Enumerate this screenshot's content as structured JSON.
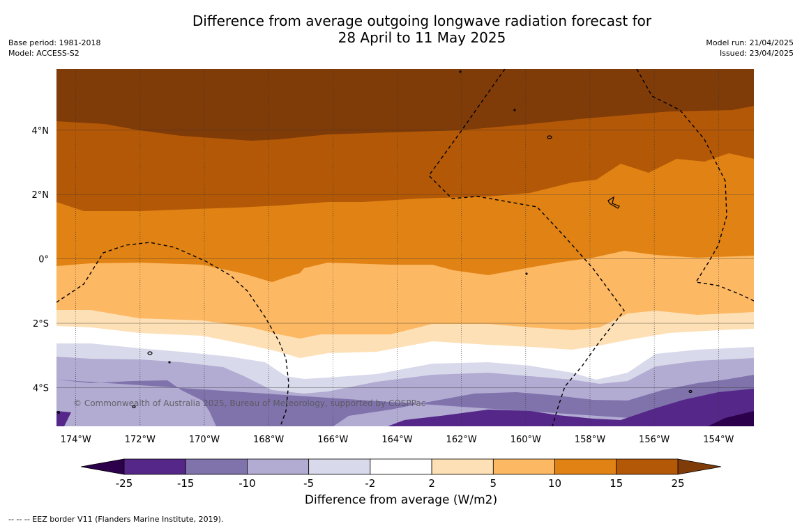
{
  "header": {
    "title": "Difference from average outgoing longwave radiation forecast for\n28 April to 11 May 2025",
    "base_period": "Base period: 1981-2018",
    "model": "Model: ACCESS-S2",
    "model_run": "Model run: 21/04/2025",
    "issued": "Issued: 23/04/2025"
  },
  "map": {
    "copyright": "© Commonwealth of Australia 2025, Bureau of Meteorology, supported by COSPPac",
    "lon_labels": [
      "174°W",
      "172°W",
      "170°W",
      "168°W",
      "166°W",
      "164°W",
      "162°W",
      "160°W",
      "158°W",
      "156°W",
      "154°W"
    ],
    "lat_labels": [
      "4°N",
      "2°N",
      "0°",
      "2°S",
      "4°S"
    ],
    "lon_values": [
      -174,
      -172,
      -170,
      -168,
      -166,
      -164,
      -162,
      -160,
      -158,
      -156,
      -154
    ],
    "lat_values": [
      4,
      2,
      0,
      -2,
      -4
    ],
    "lon_range": [
      -174.6,
      -152.9
    ],
    "lat_range": [
      -5.2,
      5.9
    ],
    "bands": [
      {
        "level": ">25",
        "color": "#7f3b08"
      },
      {
        "level": "15 to 25",
        "color": "#b35806"
      },
      {
        "level": "10 to 15",
        "color": "#e08214"
      },
      {
        "level": "5 to 10",
        "color": "#fdb863"
      },
      {
        "level": "2 to 5",
        "color": "#fee0b6"
      },
      {
        "level": "-2 to 2",
        "color": "#ffffff"
      },
      {
        "level": "-5 to -2",
        "color": "#d8daeb"
      },
      {
        "level": "-10 to -5",
        "color": "#b2abd2"
      },
      {
        "level": "-15 to -10",
        "color": "#8073ac"
      },
      {
        "level": "-25 to -15",
        "color": "#542788"
      },
      {
        "level": "<-25",
        "color": "#2d004b"
      }
    ]
  },
  "colorbar": {
    "ticks": [
      "-25",
      "-15",
      "-10",
      "-5",
      "-2",
      "2",
      "5",
      "10",
      "15",
      "25"
    ],
    "colors": [
      "#542788",
      "#8073ac",
      "#b2abd2",
      "#d8daeb",
      "#ffffff",
      "#fee0b6",
      "#fdb863",
      "#e08214",
      "#b35806"
    ],
    "under_color": "#2d004b",
    "over_color": "#7f3b08",
    "label": "Difference from average (W/m2)"
  },
  "footnote": "--  --  -- EEZ border V11 (Flanders Marine Institute, 2019)."
}
